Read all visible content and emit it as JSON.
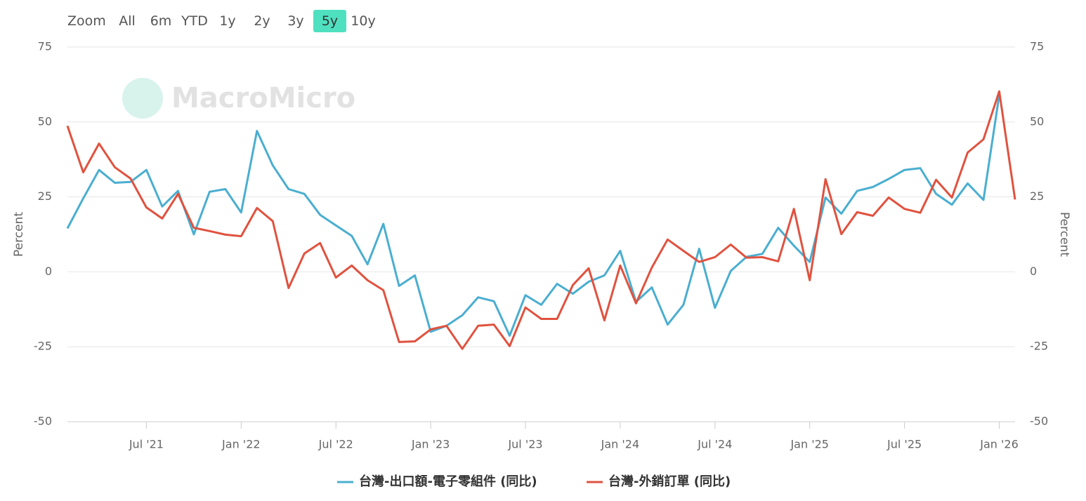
{
  "range_selector": {
    "label": "Zoom",
    "buttons": [
      "All",
      "6m",
      "YTD",
      "1y",
      "2y",
      "3y",
      "5y",
      "10y"
    ],
    "selected": "5y"
  },
  "watermark": "MacroMicro",
  "chart_data": {
    "type": "line",
    "y_label": "Percent",
    "y2_label": "Percent",
    "x": [
      "2021-02",
      "2021-03",
      "2021-04",
      "2021-05",
      "2021-06",
      "2021-07",
      "2021-08",
      "2021-09",
      "2021-10",
      "2021-11",
      "2021-12",
      "2022-01",
      "2022-02",
      "2022-03",
      "2022-04",
      "2022-05",
      "2022-06",
      "2022-07",
      "2022-08",
      "2022-09",
      "2022-10",
      "2022-11",
      "2022-12",
      "2023-01",
      "2023-02",
      "2023-03",
      "2023-04",
      "2023-05",
      "2023-06",
      "2023-07",
      "2023-08",
      "2023-09",
      "2023-10",
      "2023-11",
      "2023-12",
      "2024-01",
      "2024-02",
      "2024-03",
      "2024-04",
      "2024-05",
      "2024-06",
      "2024-07",
      "2024-08",
      "2024-09",
      "2024-10",
      "2024-11",
      "2024-12",
      "2025-01",
      "2025-02",
      "2025-03",
      "2025-04",
      "2025-05",
      "2025-06",
      "2025-07",
      "2025-08",
      "2025-09",
      "2025-10",
      "2025-11",
      "2025-12",
      "2026-01",
      "2026-02"
    ],
    "xlim": [
      "2021-02",
      "2026-02"
    ],
    "xticks": [
      {
        "value": "2021-07",
        "label": "Jul '21"
      },
      {
        "value": "2022-01",
        "label": "Jan '22"
      },
      {
        "value": "2022-07",
        "label": "Jul '22"
      },
      {
        "value": "2023-01",
        "label": "Jan '23"
      },
      {
        "value": "2023-07",
        "label": "Jul '23"
      },
      {
        "value": "2024-01",
        "label": "Jan '24"
      },
      {
        "value": "2024-07",
        "label": "Jul '24"
      },
      {
        "value": "2025-01",
        "label": "Jan '25"
      },
      {
        "value": "2025-07",
        "label": "Jul '25"
      },
      {
        "value": "2026-01",
        "label": "Jan '26"
      }
    ],
    "ylim": [
      -50,
      75
    ],
    "yticks": [
      -50,
      -25,
      0,
      25,
      50,
      75
    ],
    "y2lim": [
      -50,
      75
    ],
    "y2ticks": [
      -50,
      -25,
      0,
      25,
      50,
      75
    ],
    "grid": true,
    "legend": "bottom",
    "series": [
      {
        "name": "台灣-出口額-電子零組件 (同比)",
        "color": "#4aaed0",
        "values": [
          14.5,
          24.5,
          34,
          29.7,
          30,
          34,
          21.8,
          27,
          12.5,
          26.7,
          27.6,
          19.8,
          47,
          35.5,
          27.6,
          26,
          19,
          15.5,
          12,
          2.5,
          16,
          -4.7,
          -1.2,
          -20,
          -18,
          -14.5,
          -8.5,
          -9.8,
          -21.3,
          -7.8,
          -11,
          -4,
          -7.3,
          -3.3,
          -1.2,
          7,
          -10,
          -5.2,
          -17.6,
          -11,
          7.7,
          -12,
          0.3,
          5,
          6,
          14.7,
          8.7,
          3.3,
          24.8,
          19.4,
          27,
          28.3,
          31,
          34,
          34.6,
          26,
          22.4,
          29.5,
          24,
          59,
          null
        ]
      },
      {
        "name": "台灣-外銷訂單 (同比)",
        "color": "#e0523f",
        "values": [
          48.7,
          33.2,
          42.8,
          34.9,
          31.1,
          21.5,
          17.8,
          26,
          14.7,
          13.6,
          12.4,
          11.9,
          21.3,
          16.9,
          -5.4,
          6.1,
          9.6,
          -1.9,
          2.1,
          -2.8,
          -6.1,
          -23.4,
          -23.2,
          -19.2,
          -18,
          -25.7,
          -18,
          -17.6,
          -24.8,
          -11.9,
          -15.7,
          -15.7,
          -4.4,
          1.2,
          -16.2,
          2.1,
          -10.5,
          1.4,
          10.8,
          7,
          3.3,
          4.9,
          9.1,
          4.7,
          4.9,
          3.5,
          21,
          -2.8,
          30.9,
          12.6,
          19.9,
          18.7,
          24.8,
          21,
          19.7,
          30.7,
          24.8,
          39.8,
          44.2,
          60.2,
          24.1
        ]
      }
    ]
  }
}
